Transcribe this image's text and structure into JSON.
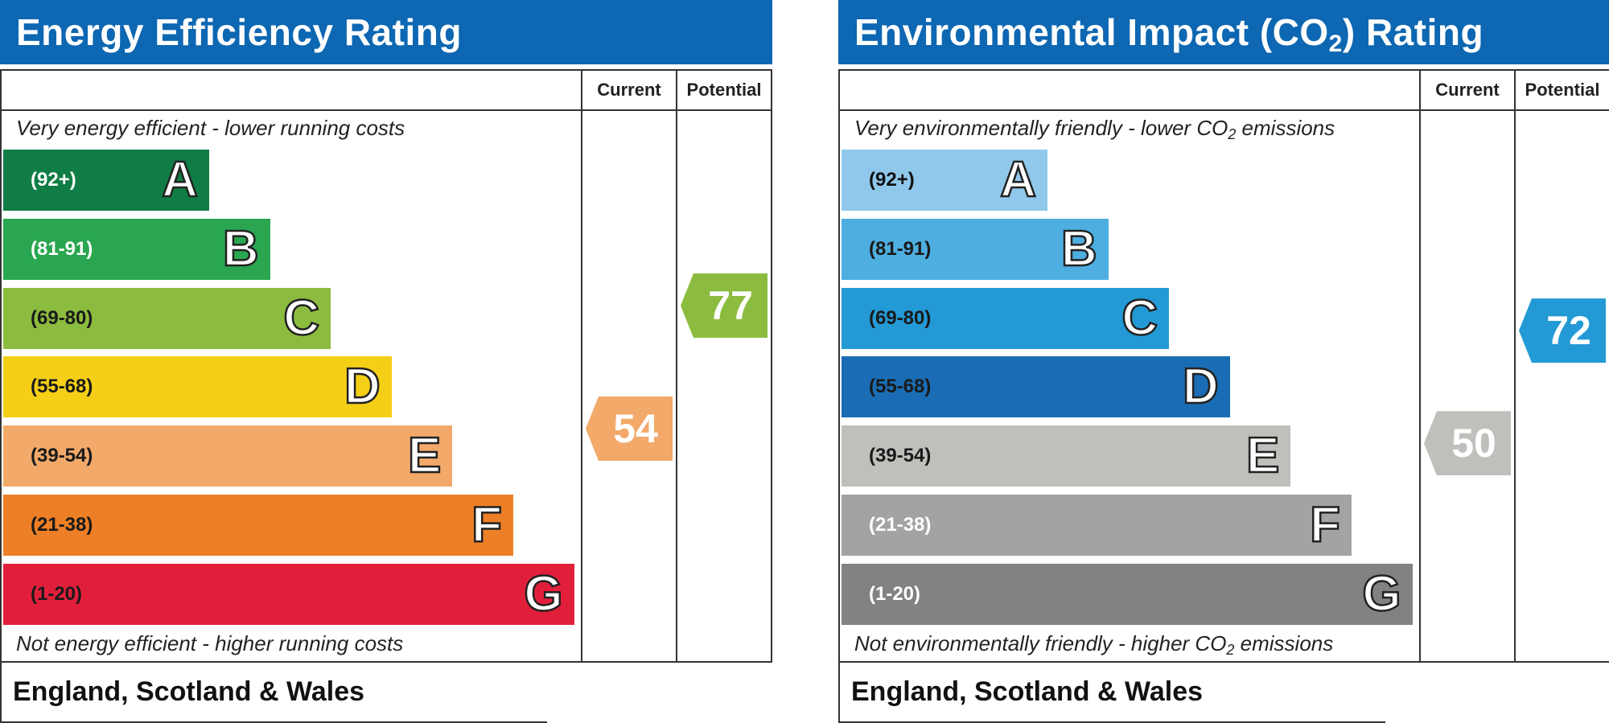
{
  "chart_data": [
    {
      "type": "bar",
      "title": "Energy Efficiency Rating",
      "columns": [
        "Current",
        "Potential"
      ],
      "top_note": "Very energy efficient - lower running costs",
      "bottom_note": "Not energy efficient - higher running costs",
      "bands": [
        {
          "letter": "A",
          "range": "(92+)",
          "color": "#0f7d45",
          "text_color": "#ffffff"
        },
        {
          "letter": "B",
          "range": "(81-91)",
          "color": "#2aa650",
          "text_color": "#ffffff"
        },
        {
          "letter": "C",
          "range": "(69-80)",
          "color": "#8cbc3f",
          "text_color": "#1a1a1a"
        },
        {
          "letter": "D",
          "range": "(55-68)",
          "color": "#f5cf16",
          "text_color": "#1a1a1a"
        },
        {
          "letter": "E",
          "range": "(39-54)",
          "color": "#f2a96a",
          "text_color": "#1a1a1a"
        },
        {
          "letter": "F",
          "range": "(21-38)",
          "color": "#ed7f26",
          "text_color": "#1a1a1a"
        },
        {
          "letter": "G",
          "range": "(1-20)",
          "color": "#e21f3b",
          "text_color": "#1a1a1a"
        }
      ],
      "current": {
        "value": 54,
        "label": "54",
        "color": "#f2a96a"
      },
      "potential": {
        "value": 77,
        "label": "77",
        "color": "#8cbc3f"
      },
      "footer": "England, Scotland & Wales"
    },
    {
      "type": "bar",
      "title": "Environmental Impact (CO2) Rating",
      "columns": [
        "Current",
        "Potential"
      ],
      "top_note": "Very environmentally friendly - lower CO2 emissions",
      "bottom_note": "Not environmentally friendly - higher CO2 emissions",
      "bands": [
        {
          "letter": "A",
          "range": "(92+)",
          "color": "#8fc8eb",
          "text_color": "#111111"
        },
        {
          "letter": "B",
          "range": "(81-91)",
          "color": "#4eaee0",
          "text_color": "#1a1a1a"
        },
        {
          "letter": "C",
          "range": "(69-80)",
          "color": "#239ad5",
          "text_color": "#1a1a1a"
        },
        {
          "letter": "D",
          "range": "(55-68)",
          "color": "#1a6db4",
          "text_color": "#1a1a1a"
        },
        {
          "letter": "E",
          "range": "(39-54)",
          "color": "#bfbfbc",
          "text_color": "#1a1a1a"
        },
        {
          "letter": "F",
          "range": "(21-38)",
          "color": "#a3a3a3",
          "text_color": "#ffffff"
        },
        {
          "letter": "G",
          "range": "(1-20)",
          "color": "#828282",
          "text_color": "#ffffff"
        }
      ],
      "current": {
        "value": 50,
        "label": "50",
        "color": "#bfbfbc"
      },
      "potential": {
        "value": 72,
        "label": "72",
        "color": "#239ad5"
      },
      "footer": "England, Scotland & Wales"
    }
  ]
}
